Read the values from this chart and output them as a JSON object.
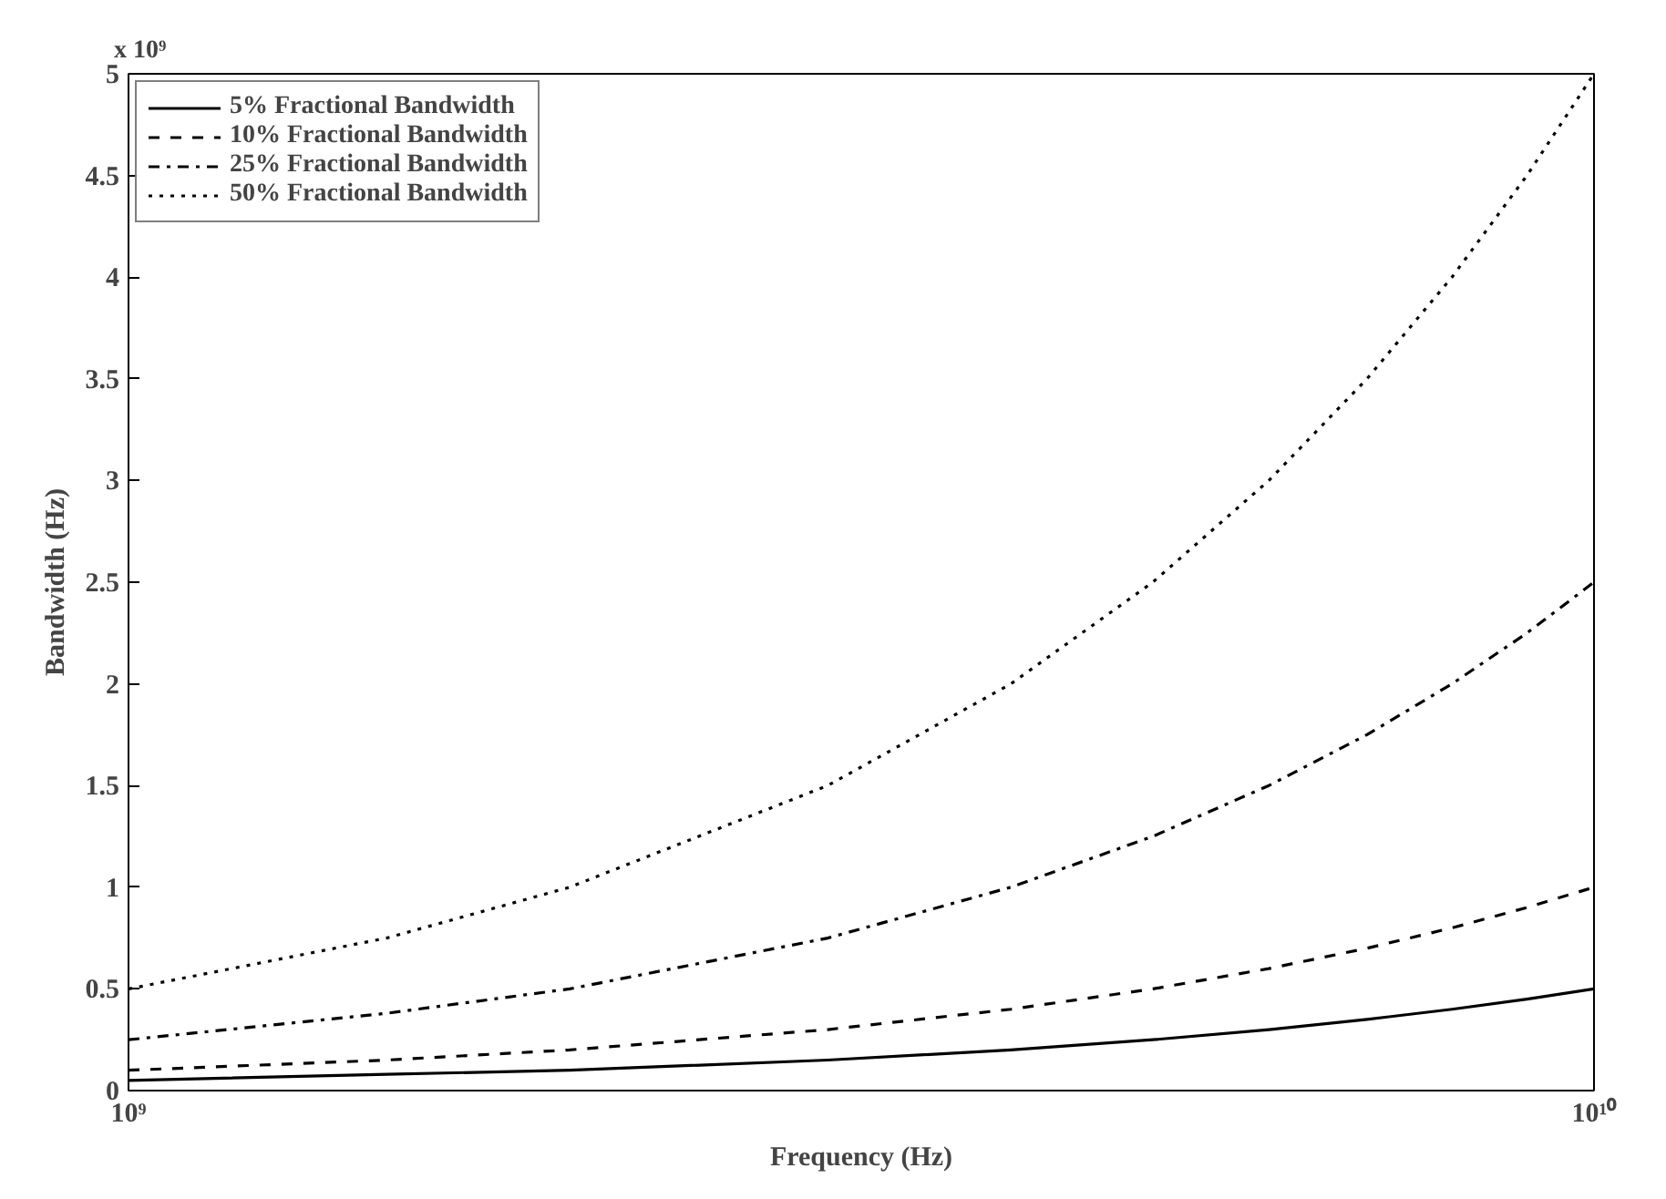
{
  "chart_data": {
    "type": "line",
    "xlabel": "Frequency (Hz)",
    "ylabel": "Bandwidth (Hz)",
    "annotations": [
      "x 10⁹"
    ],
    "x": [
      1000000000.0,
      1500000000.0,
      2000000000.0,
      3000000000.0,
      4000000000.0,
      5000000000.0,
      6000000000.0,
      7000000000.0,
      8000000000.0,
      9000000000.0,
      10000000000.0
    ],
    "series": [
      {
        "name": "5% Fractional Bandwidth",
        "color": "#000000",
        "line_style": "solid",
        "values": [
          0.05,
          0.08,
          0.1,
          0.15,
          0.2,
          0.25,
          0.3,
          0.35,
          0.4,
          0.45,
          0.5
        ]
      },
      {
        "name": "10% Fractional Bandwidth",
        "color": "#000000",
        "line_style": "dashed",
        "values": [
          0.1,
          0.15,
          0.2,
          0.3,
          0.4,
          0.5,
          0.6,
          0.7,
          0.8,
          0.9,
          1.0
        ]
      },
      {
        "name": "25% Fractional Bandwidth",
        "color": "#000000",
        "line_style": "dashdot",
        "values": [
          0.25,
          0.38,
          0.5,
          0.75,
          1.0,
          1.25,
          1.5,
          1.75,
          2.0,
          2.25,
          2.5
        ]
      },
      {
        "name": "50% Fractional Bandwidth",
        "color": "#000000",
        "line_style": "dotted",
        "values": [
          0.5,
          0.75,
          1.0,
          1.5,
          2.0,
          2.5,
          3.0,
          3.5,
          4.0,
          4.5,
          5.0
        ]
      }
    ],
    "log": "x",
    "xlim": [
      1000000000.0,
      10000000000.0
    ],
    "xticks": [
      {
        "value": 1000000000.0,
        "label": "10⁹"
      },
      {
        "value": 10000000000.0,
        "label": "10¹⁰"
      }
    ],
    "ylim": [
      0,
      5
    ],
    "yticks": [
      0,
      0.5,
      1,
      1.5,
      2,
      2.5,
      3,
      3.5,
      4,
      4.5,
      5
    ],
    "grid": false,
    "legend": "top left",
    "marker": "none"
  }
}
